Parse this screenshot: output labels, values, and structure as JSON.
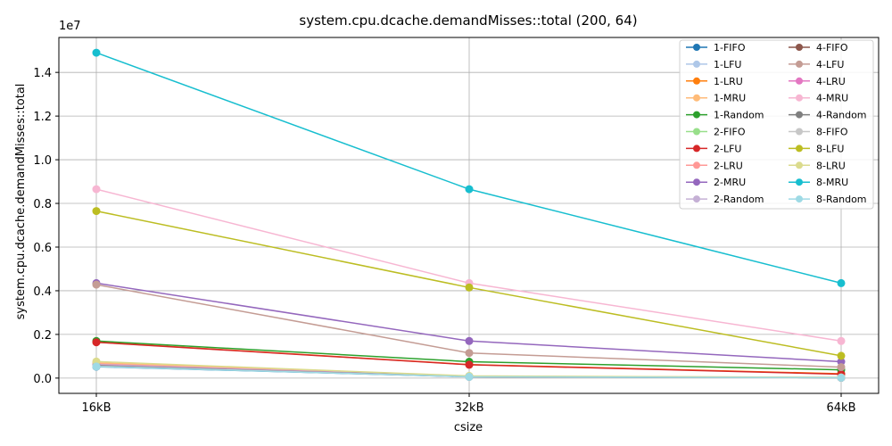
{
  "chart_data": {
    "type": "line",
    "title": "system.cpu.dcache.demandMisses::total (200, 64)",
    "xlabel": "csize",
    "ylabel": "system.cpu.dcache.demandMisses::total",
    "y_scale_label": "1e7",
    "categories": [
      "16kB",
      "32kB",
      "64kB"
    ],
    "ylim": [
      -700000,
      15600000
    ],
    "yticks": [
      0,
      2000000,
      4000000,
      6000000,
      8000000,
      10000000,
      12000000,
      14000000
    ],
    "ytick_labels": [
      "0.0",
      "0.2",
      "0.4",
      "0.6",
      "0.8",
      "1.0",
      "1.2",
      "1.4"
    ],
    "grid": true,
    "legend_position": "top-right",
    "legend_columns": 2,
    "series": [
      {
        "name": "1-FIFO",
        "color": "#1f77b4",
        "values": [
          520000,
          60000,
          20000
        ]
      },
      {
        "name": "1-LFU",
        "color": "#aec7e8",
        "values": [
          560000,
          70000,
          25000
        ]
      },
      {
        "name": "1-LRU",
        "color": "#ff7f0e",
        "values": [
          1650000,
          620000,
          200000
        ]
      },
      {
        "name": "1-MRU",
        "color": "#ffbb78",
        "values": [
          700000,
          90000,
          30000
        ]
      },
      {
        "name": "1-Random",
        "color": "#2ca02c",
        "values": [
          1700000,
          750000,
          380000
        ]
      },
      {
        "name": "2-FIFO",
        "color": "#98df8a",
        "values": [
          600000,
          70000,
          20000
        ]
      },
      {
        "name": "2-LFU",
        "color": "#d62728",
        "values": [
          1640000,
          610000,
          180000
        ]
      },
      {
        "name": "2-LRU",
        "color": "#ff9896",
        "values": [
          650000,
          80000,
          25000
        ]
      },
      {
        "name": "2-MRU",
        "color": "#9467bd",
        "values": [
          4350000,
          1700000,
          750000
        ]
      },
      {
        "name": "2-Random",
        "color": "#c5b0d5",
        "values": [
          620000,
          75000,
          22000
        ]
      },
      {
        "name": "4-FIFO",
        "color": "#8c564b",
        "values": [
          550000,
          65000,
          20000
        ]
      },
      {
        "name": "4-LFU",
        "color": "#c49c94",
        "values": [
          4280000,
          1150000,
          500000
        ]
      },
      {
        "name": "4-LRU",
        "color": "#e377c2",
        "values": [
          580000,
          70000,
          20000
        ]
      },
      {
        "name": "4-MRU",
        "color": "#f7b6d2",
        "values": [
          8650000,
          4350000,
          1700000
        ]
      },
      {
        "name": "4-Random",
        "color": "#7f7f7f",
        "values": [
          570000,
          68000,
          20000
        ]
      },
      {
        "name": "8-FIFO",
        "color": "#c7c7c7",
        "values": [
          540000,
          62000,
          18000
        ]
      },
      {
        "name": "8-LFU",
        "color": "#bcbd22",
        "values": [
          7650000,
          4150000,
          1020000
        ]
      },
      {
        "name": "8-LRU",
        "color": "#dbdb8d",
        "values": [
          760000,
          100000,
          30000
        ]
      },
      {
        "name": "8-MRU",
        "color": "#17becf",
        "values": [
          14900000,
          8650000,
          4350000
        ]
      },
      {
        "name": "8-Random",
        "color": "#9edae5",
        "values": [
          530000,
          60000,
          18000
        ]
      }
    ]
  }
}
